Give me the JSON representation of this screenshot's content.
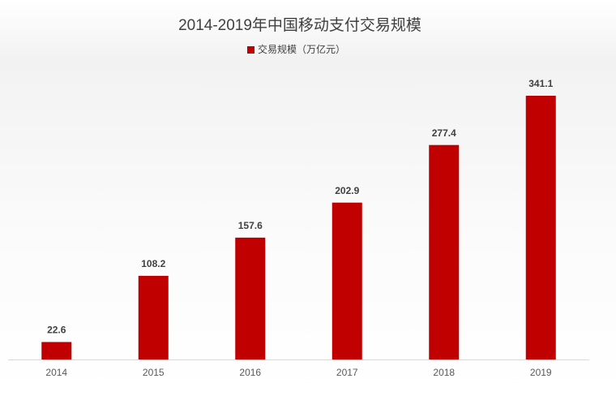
{
  "chart_data": {
    "type": "bar",
    "title": "2014-2019年中国移动支付交易规模",
    "categories": [
      "2014",
      "2015",
      "2016",
      "2017",
      "2018",
      "2019"
    ],
    "series": [
      {
        "name": "交易规模（万亿元）",
        "color": "#c00000",
        "values": [
          22.6,
          108.2,
          157.6,
          202.9,
          277.4,
          341.1
        ]
      }
    ]
  }
}
